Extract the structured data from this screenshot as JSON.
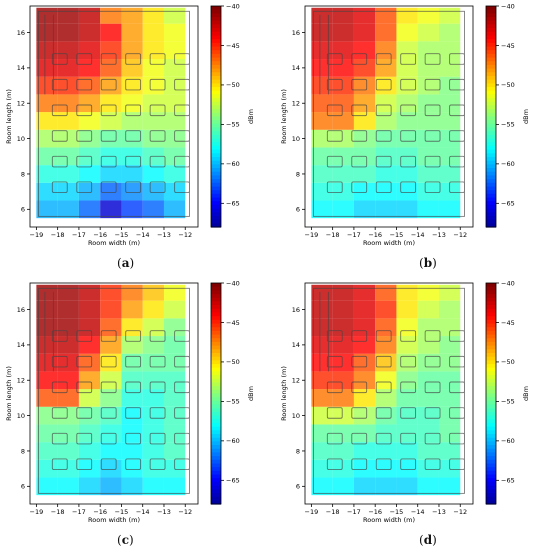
{
  "chart_data": [
    {
      "type": "heatmap",
      "panel_label": "a",
      "xlabel": "Room width (m)",
      "ylabel": "Room length (m)",
      "colorbar_label": "dBm",
      "xticks": [
        -19,
        -18,
        -17,
        -16,
        -15,
        -14,
        -13,
        -12
      ],
      "yticks": [
        6,
        8,
        10,
        12,
        14,
        16
      ],
      "colorbar_ticks": [
        -40,
        -45,
        -50,
        -55,
        -60,
        -65
      ],
      "xlim": [
        -19.3,
        -11.4
      ],
      "ylim": [
        5.0,
        17.5
      ],
      "clim": [
        -68,
        -40
      ],
      "x_centers": [
        -18.5,
        -17.5,
        -16.5,
        -15.5,
        -14.5,
        -13.5,
        -12.5
      ],
      "y_centers": [
        6,
        7,
        8,
        9,
        10,
        11,
        12,
        13,
        14,
        15,
        16,
        17
      ],
      "values": [
        [
          -60,
          -60,
          -62,
          -66,
          -63,
          -62,
          -60
        ],
        [
          -59,
          -59,
          -60,
          -62,
          -61,
          -60,
          -59
        ],
        [
          -57,
          -57,
          -58,
          -59,
          -59,
          -58,
          -57
        ],
        [
          -55,
          -55,
          -56,
          -57,
          -57,
          -56,
          -55
        ],
        [
          -53,
          -53,
          -54,
          -55,
          -55,
          -54,
          -54
        ],
        [
          -50,
          -50,
          -51,
          -52,
          -53,
          -53,
          -53
        ],
        [
          -47,
          -47,
          -48,
          -50,
          -51,
          -52,
          -52
        ],
        [
          -45,
          -45,
          -46,
          -48,
          -50,
          -51,
          -52
        ],
        [
          -43,
          -43,
          -44,
          -46,
          -49,
          -51,
          -52
        ],
        [
          -42,
          -42,
          -43,
          -45,
          -48,
          -50,
          -51
        ],
        [
          -41,
          -41,
          -42,
          -44,
          -48,
          -50,
          -51
        ],
        [
          -41,
          -41,
          -42,
          -47,
          -48,
          -50,
          -52
        ]
      ]
    },
    {
      "type": "heatmap",
      "panel_label": "b",
      "xlabel": "Room width (m)",
      "ylabel": "Room length (m)",
      "colorbar_label": "dBm",
      "xticks": [
        -19,
        -18,
        -17,
        -16,
        -15,
        -14,
        -13,
        -12
      ],
      "yticks": [
        6,
        8,
        10,
        12,
        14,
        16
      ],
      "colorbar_ticks": [
        -40,
        -45,
        -50,
        -55,
        -60,
        -65
      ],
      "xlim": [
        -19.3,
        -11.4
      ],
      "ylim": [
        5.0,
        17.5
      ],
      "clim": [
        -68,
        -40
      ],
      "x_centers": [
        -18.5,
        -17.5,
        -16.5,
        -15.5,
        -14.5,
        -13.5,
        -12.5
      ],
      "y_centers": [
        6,
        7,
        8,
        9,
        10,
        11,
        12,
        13,
        14,
        15,
        16,
        17
      ],
      "values": [
        [
          -58,
          -58,
          -59,
          -59,
          -59,
          -58,
          -58
        ],
        [
          -57,
          -57,
          -58,
          -58,
          -58,
          -57,
          -57
        ],
        [
          -56,
          -56,
          -56,
          -57,
          -57,
          -56,
          -56
        ],
        [
          -55,
          -55,
          -55,
          -56,
          -56,
          -55,
          -55
        ],
        [
          -53,
          -53,
          -54,
          -55,
          -55,
          -55,
          -55
        ],
        [
          -47,
          -47,
          -50,
          -53,
          -54,
          -54,
          -54
        ],
        [
          -46,
          -46,
          -48,
          -52,
          -53,
          -54,
          -54
        ],
        [
          -45,
          -45,
          -47,
          -50,
          -52,
          -53,
          -54
        ],
        [
          -44,
          -44,
          -45,
          -48,
          -52,
          -53,
          -53
        ],
        [
          -43,
          -43,
          -44,
          -47,
          -52,
          -53,
          -53
        ],
        [
          -42,
          -42,
          -43,
          -46,
          -51,
          -52,
          -53
        ],
        [
          -42,
          -42,
          -43,
          -46,
          -50,
          -51,
          -52
        ]
      ]
    },
    {
      "type": "heatmap",
      "panel_label": "c",
      "xlabel": "Room width (m)",
      "ylabel": "Room length (m)",
      "colorbar_label": "dBm",
      "xticks": [
        -19,
        -18,
        -17,
        -16,
        -15,
        -14,
        -13,
        -12
      ],
      "yticks": [
        6,
        8,
        10,
        12,
        14,
        16
      ],
      "colorbar_ticks": [
        -40,
        -45,
        -50,
        -55,
        -60,
        -65
      ],
      "xlim": [
        -19.3,
        -11.4
      ],
      "ylim": [
        5.0,
        17.5
      ],
      "clim": [
        -68,
        -40
      ],
      "x_centers": [
        -18.5,
        -17.5,
        -16.5,
        -15.5,
        -14.5,
        -13.5,
        -12.5
      ],
      "y_centers": [
        6,
        7,
        8,
        9,
        10,
        11,
        12,
        13,
        14,
        15,
        16,
        17
      ],
      "values": [
        [
          -58,
          -58,
          -59,
          -60,
          -59,
          -58,
          -58
        ],
        [
          -57,
          -57,
          -58,
          -59,
          -58,
          -57,
          -57
        ],
        [
          -56,
          -56,
          -57,
          -58,
          -58,
          -57,
          -56
        ],
        [
          -55,
          -55,
          -56,
          -57,
          -58,
          -57,
          -56
        ],
        [
          -54,
          -54,
          -55,
          -56,
          -58,
          -57,
          -56
        ],
        [
          -46,
          -46,
          -52,
          -54,
          -57,
          -57,
          -56
        ],
        [
          -44,
          -44,
          -48,
          -52,
          -56,
          -56,
          -56
        ],
        [
          -43,
          -43,
          -46,
          -50,
          -55,
          -55,
          -55
        ],
        [
          -42,
          -42,
          -44,
          -48,
          -53,
          -54,
          -55
        ],
        [
          -41,
          -41,
          -42,
          -46,
          -50,
          -52,
          -54
        ],
        [
          -41,
          -41,
          -42,
          -45,
          -48,
          -50,
          -52
        ],
        [
          -41,
          -41,
          -42,
          -45,
          -47,
          -49,
          -51
        ]
      ]
    },
    {
      "type": "heatmap",
      "panel_label": "d",
      "xlabel": "Room width (m)",
      "ylabel": "Room length (m)",
      "colorbar_label": "dBm",
      "xticks": [
        -19,
        -18,
        -17,
        -16,
        -15,
        -14,
        -13,
        -12
      ],
      "yticks": [
        6,
        8,
        10,
        12,
        14,
        16
      ],
      "colorbar_ticks": [
        -40,
        -45,
        -50,
        -55,
        -60,
        -65
      ],
      "xlim": [
        -19.3,
        -11.4
      ],
      "ylim": [
        5.0,
        17.5
      ],
      "clim": [
        -68,
        -40
      ],
      "x_centers": [
        -18.5,
        -17.5,
        -16.5,
        -15.5,
        -14.5,
        -13.5,
        -12.5
      ],
      "y_centers": [
        6,
        7,
        8,
        9,
        10,
        11,
        12,
        13,
        14,
        15,
        16,
        17
      ],
      "values": [
        [
          -58,
          -58,
          -59,
          -59,
          -59,
          -58,
          -58
        ],
        [
          -57,
          -57,
          -58,
          -58,
          -58,
          -57,
          -57
        ],
        [
          -56,
          -56,
          -57,
          -57,
          -57,
          -56,
          -56
        ],
        [
          -55,
          -55,
          -55,
          -56,
          -56,
          -56,
          -55
        ],
        [
          -52,
          -52,
          -53,
          -55,
          -56,
          -56,
          -55
        ],
        [
          -47,
          -47,
          -50,
          -53,
          -55,
          -55,
          -55
        ],
        [
          -45,
          -45,
          -47,
          -51,
          -54,
          -55,
          -55
        ],
        [
          -44,
          -44,
          -46,
          -49,
          -53,
          -54,
          -54
        ],
        [
          -43,
          -43,
          -44,
          -47,
          -52,
          -53,
          -54
        ],
        [
          -42,
          -42,
          -43,
          -46,
          -51,
          -53,
          -53
        ],
        [
          -42,
          -42,
          -43,
          -45,
          -50,
          -52,
          -53
        ],
        [
          -42,
          -42,
          -43,
          -46,
          -50,
          -51,
          -52
        ]
      ]
    }
  ]
}
